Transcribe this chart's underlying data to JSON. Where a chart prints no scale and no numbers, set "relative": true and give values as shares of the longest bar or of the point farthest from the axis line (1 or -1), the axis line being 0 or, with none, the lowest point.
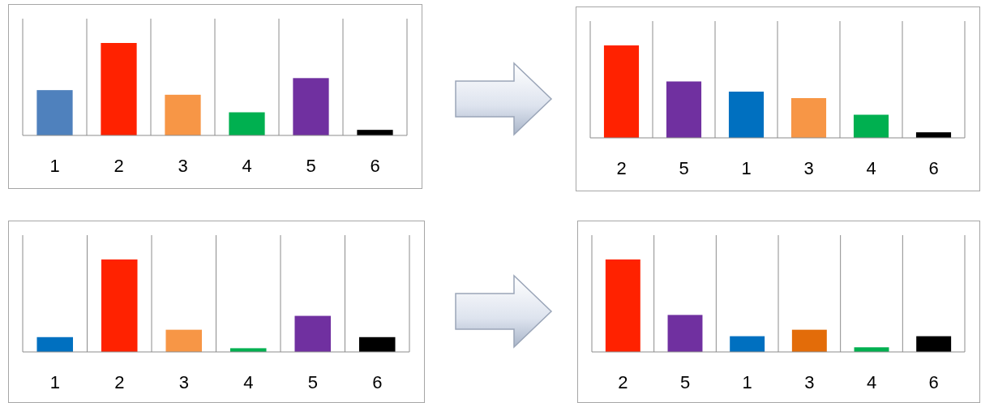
{
  "chart_data": [
    {
      "type": "bar",
      "relative": true,
      "grid": "x",
      "categories": [
        "1",
        "2",
        "3",
        "4",
        "5",
        "6"
      ],
      "values": [
        0.49,
        1,
        0.44,
        0.25,
        0.62,
        0.06
      ],
      "colors": [
        "#4f81bd",
        "#ff2200",
        "#f79646",
        "#00b050",
        "#7030a0",
        "#000000"
      ]
    },
    {
      "type": "bar",
      "relative": true,
      "grid": "x",
      "categories": [
        "2",
        "5",
        "1",
        "3",
        "4",
        "6"
      ],
      "values": [
        1,
        0.61,
        0.5,
        0.43,
        0.25,
        0.06
      ],
      "colors": [
        "#ff2200",
        "#7030a0",
        "#0070c0",
        "#f79646",
        "#00b050",
        "#000000"
      ]
    },
    {
      "type": "bar",
      "relative": true,
      "grid": "x",
      "categories": [
        "1",
        "2",
        "3",
        "4",
        "5",
        "6"
      ],
      "values": [
        0.16,
        1,
        0.24,
        0.04,
        0.39,
        0.16
      ],
      "colors": [
        "#0070c0",
        "#ff2200",
        "#f79646",
        "#00b050",
        "#7030a0",
        "#000000"
      ]
    },
    {
      "type": "bar",
      "relative": true,
      "grid": "x",
      "categories": [
        "2",
        "5",
        "1",
        "3",
        "4",
        "6"
      ],
      "values": [
        1,
        0.4,
        0.17,
        0.24,
        0.05,
        0.17
      ],
      "colors": [
        "#ff2200",
        "#7030a0",
        "#0070c0",
        "#e36c09",
        "#00b050",
        "#000000"
      ]
    }
  ]
}
